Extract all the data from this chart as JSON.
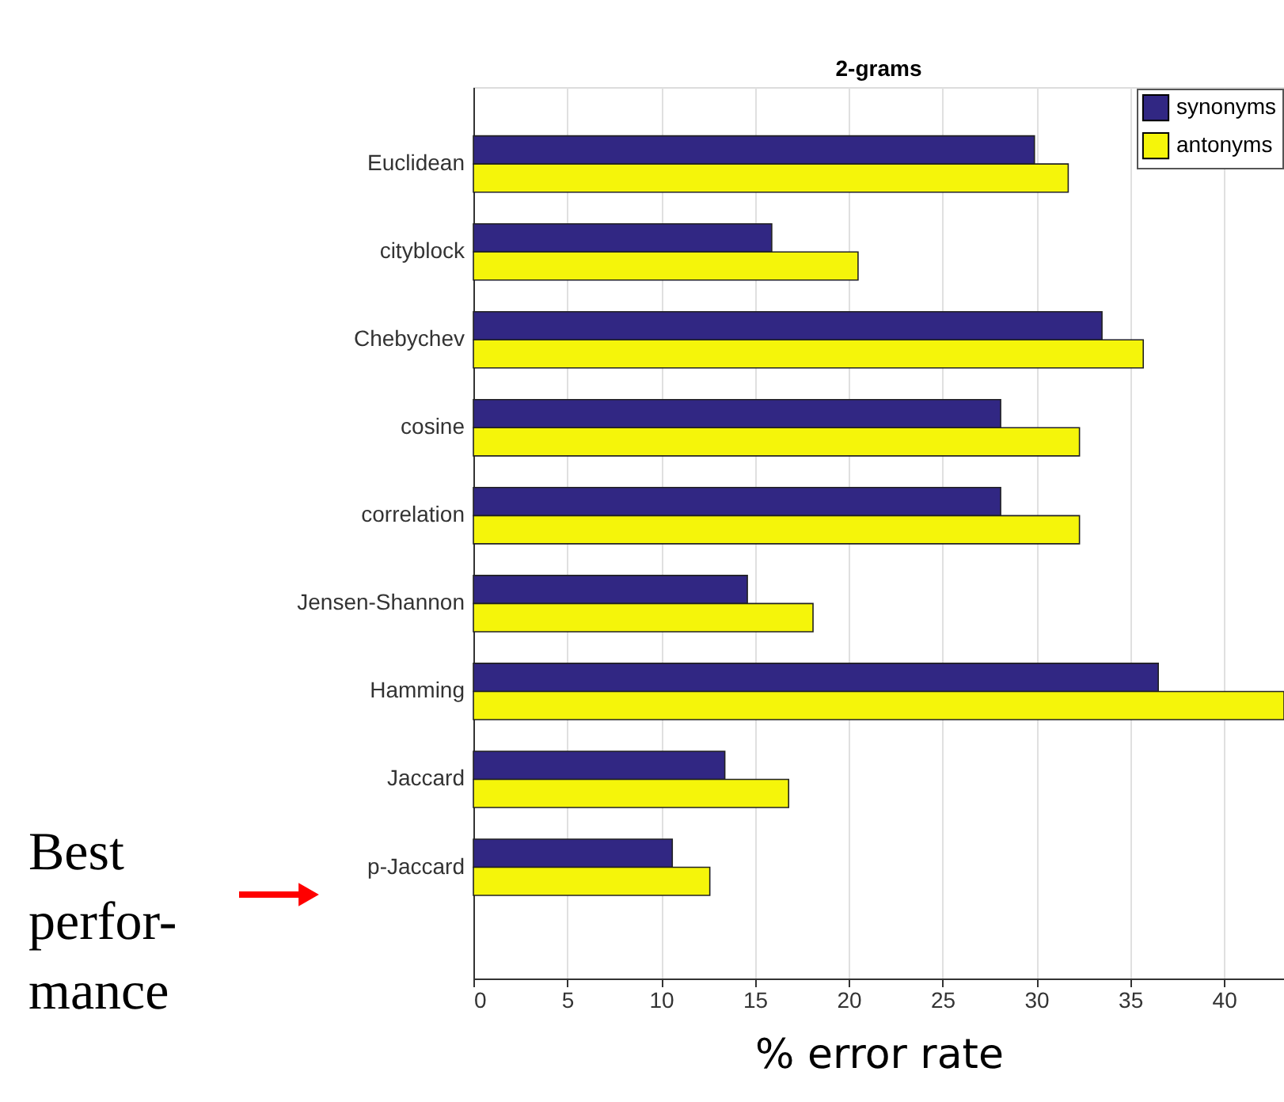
{
  "chart_data": {
    "type": "bar",
    "orientation": "horizontal",
    "title": "2-grams",
    "xlabel": "% error rate",
    "categories": [
      "Euclidean",
      "cityblock",
      "Chebychev",
      "cosine",
      "correlation",
      "Jensen-Shannon",
      "Hamming",
      "Jaccard",
      "p-Jaccard"
    ],
    "series": [
      {
        "name": "synonyms",
        "color": "#312783",
        "values": [
          29.9,
          15.9,
          33.5,
          28.1,
          28.1,
          14.6,
          36.5,
          13.4,
          10.6
        ]
      },
      {
        "name": "antonyms",
        "color": "#f5f50a",
        "values": [
          31.7,
          20.5,
          35.7,
          32.3,
          32.3,
          18.1,
          43.2,
          16.8,
          12.6
        ]
      }
    ],
    "xlim": [
      0,
      43.2
    ],
    "xticks": [
      0,
      5,
      10,
      15,
      20,
      25,
      30,
      35,
      40
    ],
    "grid": "x",
    "legend": "top right",
    "annotations": [
      "Best perfor-mance"
    ]
  }
}
